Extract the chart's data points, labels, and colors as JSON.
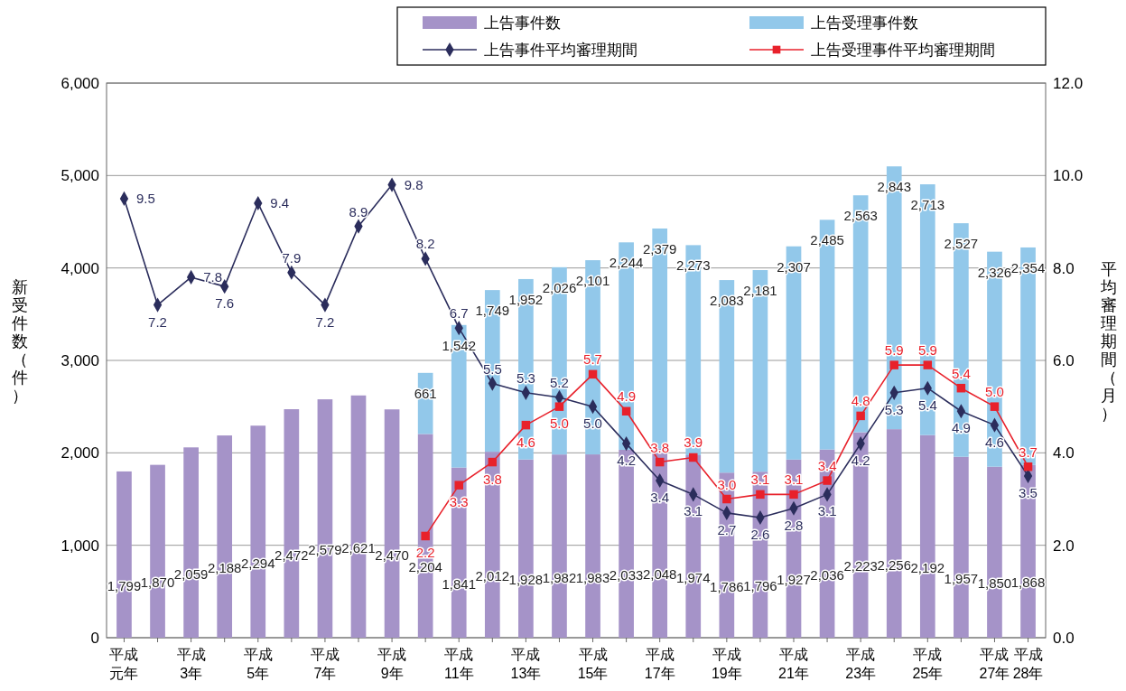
{
  "chart_data": {
    "type": "bar",
    "stacked": true,
    "categories": [
      "平成元年",
      null,
      "平成3年",
      null,
      "平成5年",
      null,
      "平成7年",
      null,
      "平成9年",
      null,
      "平成11年",
      null,
      "平成13年",
      null,
      "平成15年",
      null,
      "平成17年",
      null,
      "平成19年",
      null,
      "平成21年",
      null,
      "平成23年",
      null,
      "平成25年",
      null,
      "平成27年",
      "平成28年"
    ],
    "ylabel": "新受件数（件）",
    "y2label": "平均審理期間（月）",
    "ylim": [
      0,
      6000
    ],
    "yticks": [
      0,
      {
        "value": 1000,
        "label": "1,000"
      },
      {
        "value": 2000,
        "label": "2,000"
      },
      {
        "value": 3000,
        "label": "3,000"
      },
      {
        "value": 4000,
        "label": "4,000"
      },
      {
        "value": 5000,
        "label": "5,000"
      },
      {
        "value": 6000,
        "label": "6,000"
      }
    ],
    "y2lim": [
      0,
      12
    ],
    "y2ticks": [
      {
        "value": 0,
        "label": "0.0"
      },
      {
        "value": 2,
        "label": "2.0"
      },
      {
        "value": 4,
        "label": "4.0"
      },
      {
        "value": 6,
        "label": "6.0"
      },
      {
        "value": 8,
        "label": "8.0"
      },
      {
        "value": 10,
        "label": "10.0"
      },
      {
        "value": 12,
        "label": "12.0"
      }
    ],
    "grid": "y",
    "legend": "top right",
    "series": [
      {
        "name": "上告事件数",
        "color": "#a593c8",
        "values": [
          1799,
          1870,
          2059,
          2188,
          2294,
          2472,
          2579,
          2621,
          2470,
          2204,
          1841,
          2012,
          1928,
          1982,
          1983,
          2033,
          2048,
          1974,
          1786,
          1796,
          1927,
          2036,
          2223,
          2256,
          2192,
          1957,
          1850,
          1868
        ],
        "value_labels": [
          "1,799",
          "1,870",
          "2,059",
          "2,188",
          "2,294",
          "2,472",
          "2,579",
          "2,621",
          "2,470",
          "2,204",
          "1,841",
          "2,012",
          "1,928",
          "1,982",
          "1,983",
          "2,033",
          "2,048",
          "1,974",
          "1,786",
          "1,796",
          "1,927",
          "2,036",
          "2,223",
          "2,256",
          "2,192",
          "1,957",
          "1,850",
          "1,868"
        ]
      },
      {
        "name": "上告受理事件数",
        "color": "#92c8ea",
        "values": [
          null,
          null,
          null,
          null,
          null,
          null,
          null,
          null,
          null,
          661,
          1542,
          1749,
          1952,
          2026,
          2101,
          2244,
          2379,
          2273,
          2083,
          2181,
          2307,
          2485,
          2563,
          2843,
          2713,
          2527,
          2326,
          2354
        ],
        "value_labels": [
          null,
          null,
          null,
          null,
          null,
          null,
          null,
          null,
          null,
          "661",
          "1,542",
          "1,749",
          "1,952",
          "2,026",
          "2,101",
          "2,244",
          "2,379",
          "2,273",
          "2,083",
          "2,181",
          "2,307",
          "2,485",
          "2,563",
          "2,843",
          "2,713",
          "2,527",
          "2,326",
          "2,354"
        ]
      },
      {
        "name": "上告事件平均審理期間",
        "type": "line",
        "axis": "y2",
        "marker": "diamond",
        "color": "#2b2d5c",
        "values": [
          9.5,
          7.2,
          7.8,
          7.6,
          9.4,
          7.9,
          7.2,
          8.9,
          9.8,
          8.2,
          6.7,
          5.5,
          5.3,
          5.2,
          5.0,
          4.2,
          3.4,
          3.1,
          2.7,
          2.6,
          2.8,
          3.1,
          4.2,
          5.3,
          5.4,
          4.9,
          4.6,
          3.5
        ],
        "value_labels": [
          "9.5",
          "7.2",
          "7.8",
          "7.6",
          "9.4",
          "7.9",
          "7.2",
          "8.9",
          "9.8",
          "8.2",
          "6.7",
          "5.5",
          "5.3",
          "5.2",
          "5.0",
          "4.2",
          "3.4",
          "3.1",
          "2.7",
          "2.6",
          "2.8",
          "3.1",
          "4.2",
          "5.3",
          "5.4",
          "4.9",
          "4.6",
          "3.5"
        ]
      },
      {
        "name": "上告受理事件平均審理期間",
        "type": "line",
        "axis": "y2",
        "marker": "square",
        "color": "#e8212b",
        "values": [
          null,
          null,
          null,
          null,
          null,
          null,
          null,
          null,
          null,
          2.2,
          3.3,
          3.8,
          4.6,
          5.0,
          5.7,
          4.9,
          3.8,
          3.9,
          3.0,
          3.1,
          3.1,
          3.4,
          4.8,
          5.9,
          5.9,
          5.4,
          5.0,
          3.7
        ],
        "value_labels": [
          null,
          null,
          null,
          null,
          null,
          null,
          null,
          null,
          null,
          "2.2",
          "3.3",
          "3.8",
          "4.6",
          "5.0",
          "5.7",
          "4.9",
          "3.8",
          "3.9",
          "3.0",
          "3.1",
          "3.1",
          "3.4",
          "4.8",
          "5.9",
          "5.9",
          "5.4",
          "5.0",
          "3.7"
        ]
      }
    ]
  }
}
